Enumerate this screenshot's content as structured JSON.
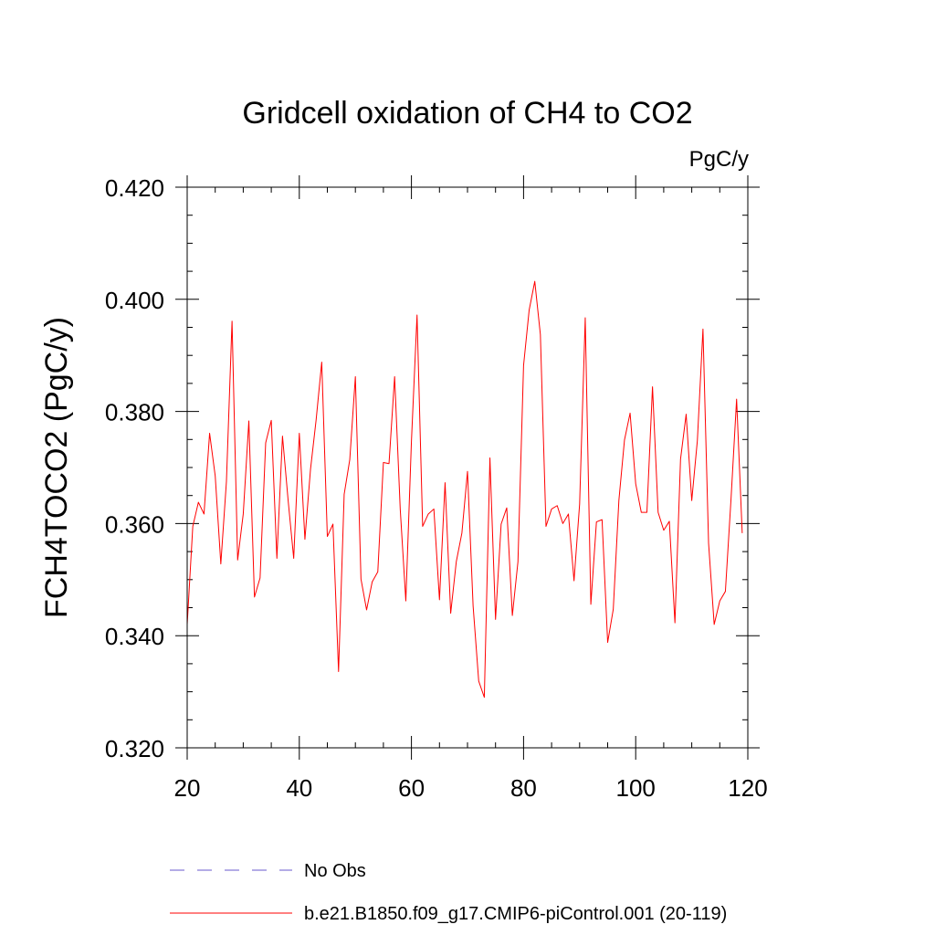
{
  "chart_data": {
    "type": "line",
    "title": "Gridcell oxidation of CH4 to CO2",
    "units": "PgC/y",
    "xlabel": "",
    "ylabel": "FCH4TOCO2  (PgC/y)",
    "xlim": [
      20,
      120
    ],
    "ylim": [
      0.32,
      0.42
    ],
    "x_ticks": [
      20,
      40,
      60,
      80,
      100,
      120
    ],
    "x_tick_labels": [
      "20",
      "40",
      "60",
      "80",
      "100",
      "120"
    ],
    "y_ticks": [
      0.32,
      0.34,
      0.36,
      0.38,
      0.4,
      0.42
    ],
    "y_tick_labels": [
      "0.320",
      "0.340",
      "0.360",
      "0.380",
      "0.400",
      "0.420"
    ],
    "legend": [
      {
        "label": "No Obs",
        "color": "#6a5acd",
        "style": "dashed"
      },
      {
        "label": "b.e21.B1850.f09_g17.CMIP6-piControl.001 (20-119)",
        "color": "#ff0000",
        "style": "solid"
      }
    ],
    "series": [
      {
        "name": "b.e21.B1850.f09_g17.CMIP6-piControl.001 (20-119)",
        "color": "#ff0000",
        "x_start": 20,
        "values": [
          0.342,
          0.3595,
          0.3638,
          0.3617,
          0.3761,
          0.3685,
          0.3528,
          0.3675,
          0.3961,
          0.3535,
          0.3617,
          0.3783,
          0.3469,
          0.3503,
          0.3744,
          0.3784,
          0.3538,
          0.3756,
          0.3642,
          0.3538,
          0.3761,
          0.3572,
          0.3697,
          0.3785,
          0.3888,
          0.3577,
          0.3599,
          0.3336,
          0.3652,
          0.3714,
          0.3862,
          0.3501,
          0.3446,
          0.3496,
          0.3514,
          0.3709,
          0.3707,
          0.3862,
          0.3626,
          0.3462,
          0.3747,
          0.3972,
          0.3595,
          0.3617,
          0.3626,
          0.3464,
          0.3673,
          0.344,
          0.3532,
          0.3583,
          0.3693,
          0.3453,
          0.3319,
          0.329,
          0.3717,
          0.3429,
          0.3599,
          0.3628,
          0.3436,
          0.3532,
          0.3882,
          0.3981,
          0.4032,
          0.3937,
          0.3595,
          0.3626,
          0.3632,
          0.36,
          0.3617,
          0.3498,
          0.3635,
          0.3967,
          0.3456,
          0.3603,
          0.3607,
          0.3388,
          0.3447,
          0.3641,
          0.3749,
          0.3797,
          0.3671,
          0.362,
          0.362,
          0.3844,
          0.362,
          0.3588,
          0.3604,
          0.3423,
          0.3715,
          0.3795,
          0.3641,
          0.3748,
          0.3947,
          0.3565,
          0.342,
          0.3462,
          0.3479,
          0.3643,
          0.3822,
          0.3583
        ]
      }
    ]
  }
}
